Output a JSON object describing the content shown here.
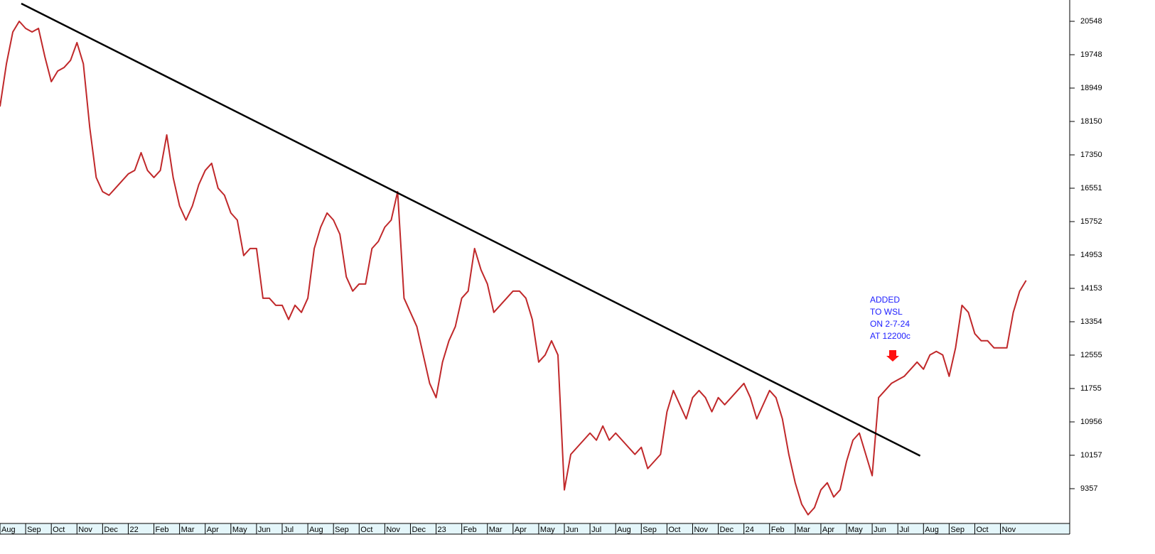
{
  "chart_data": {
    "type": "line",
    "categories": [
      "Aug",
      "Sep",
      "Oct",
      "Nov",
      "Dec",
      "22",
      "Feb",
      "Mar",
      "Apr",
      "May",
      "Jun",
      "Jul",
      "Aug",
      "Sep",
      "Oct",
      "Nov",
      "Dec",
      "23",
      "Feb",
      "Mar",
      "Apr",
      "May",
      "Jun",
      "Jul",
      "Aug",
      "Sep",
      "Oct",
      "Nov",
      "Dec",
      "24",
      "Feb",
      "Mar",
      "Apr",
      "May",
      "Jun",
      "Jul",
      "Aug",
      "Sep",
      "Oct",
      "Nov"
    ],
    "x": [
      0,
      0.25,
      0.5,
      0.75,
      1,
      1.25,
      1.5,
      1.75,
      2,
      2.25,
      2.5,
      2.75,
      3,
      3.25,
      3.5,
      3.75,
      4,
      4.25,
      4.5,
      4.75,
      5,
      5.25,
      5.5,
      5.75,
      6,
      6.25,
      6.5,
      6.75,
      7,
      7.25,
      7.5,
      7.75,
      8,
      8.25,
      8.5,
      8.75,
      9,
      9.25,
      9.5,
      9.75,
      10,
      10.25,
      10.5,
      10.75,
      11,
      11.25,
      11.5,
      11.75,
      12,
      12.25,
      12.5,
      12.75,
      13,
      13.25,
      13.5,
      13.75,
      14,
      14.25,
      14.5,
      14.75,
      15,
      15.25,
      15.5,
      15.75,
      16,
      16.25,
      16.5,
      16.75,
      17,
      17.25,
      17.5,
      17.75,
      18,
      18.25,
      18.5,
      18.75,
      19,
      19.25,
      19.5,
      19.75,
      20,
      20.25,
      20.5,
      20.75,
      21,
      21.25,
      21.5,
      21.75,
      22,
      22.25,
      22.5,
      22.75,
      23,
      23.25,
      23.5,
      23.75,
      24,
      24.25,
      24.5,
      24.75,
      25,
      25.25,
      25.5,
      25.75,
      26,
      26.25,
      26.5,
      26.75,
      27,
      27.25,
      27.5,
      27.75,
      28,
      28.25,
      28.5,
      28.75,
      29,
      29.25,
      29.5,
      29.75,
      30,
      30.25,
      30.5,
      30.75,
      31,
      31.25,
      31.5,
      31.75,
      32,
      32.25,
      32.5,
      32.75,
      33,
      33.25,
      33.5,
      33.75,
      34,
      34.25,
      34.5,
      34.75,
      35,
      35.25,
      35.5,
      35.75,
      36,
      36.25,
      36.5,
      36.75,
      37,
      37.25,
      37.5,
      37.75,
      38,
      38.25,
      38.5,
      38.75,
      39,
      39.25,
      39.5,
      39.75,
      40
    ],
    "series": [
      {
        "color": "#c0282a",
        "values": [
          18508,
          19528,
          20293,
          20548,
          20378,
          20293,
          20378,
          19698,
          19103,
          19358,
          19443,
          19613,
          20038,
          19528,
          17998,
          16808,
          16468,
          16383,
          16553,
          16723,
          16893,
          16978,
          17403,
          16978,
          16808,
          16978,
          17828,
          16808,
          16128,
          15788,
          16128,
          16638,
          16978,
          17148,
          16553,
          16383,
          15958,
          15788,
          14938,
          15108,
          15108,
          13918,
          13918,
          13748,
          13748,
          13408,
          13748,
          13578,
          13918,
          15108,
          15618,
          15958,
          15788,
          15448,
          14428,
          14088,
          14258,
          14258,
          15108,
          15278,
          15618,
          15788,
          16468,
          13918,
          13578,
          13238,
          12558,
          11878,
          11538,
          12388,
          12898,
          13238,
          13918,
          14088,
          15108,
          14598,
          14258,
          13578,
          13748,
          13918,
          14088,
          14088,
          13918,
          13408,
          12388,
          12558,
          12898,
          12558,
          9328,
          10178,
          10348,
          10518,
          10688,
          10518,
          10858,
          10518,
          10688,
          10518,
          10348,
          10178,
          10348,
          9838,
          10008,
          10178,
          11198,
          11708,
          11368,
          11028,
          11538,
          11708,
          11538,
          11198,
          11538,
          11368,
          11538,
          11708,
          11878,
          11538,
          11028,
          11368,
          11708,
          11538,
          11028,
          10178,
          9498,
          8988,
          8733,
          8903,
          9328,
          9498,
          9158,
          9328,
          10008,
          10518,
          10688,
          10178,
          9668,
          11538,
          11708,
          11878,
          11963,
          12048,
          12218,
          12388,
          12218,
          12558,
          12643,
          12558,
          12048,
          12728,
          13748,
          13578,
          13068,
          12898,
          12898,
          12728,
          12728,
          12728,
          13578,
          14088,
          14343
        ]
      }
    ],
    "trendline": {
      "x": [
        0.83,
        35.87
      ],
      "y": [
        20973,
        10144
      ],
      "color": "#000000"
    },
    "annotation": [
      "ADDED",
      "TO WSL",
      "ON 2-7-24",
      "AT 12200c"
    ],
    "xlim": [
      0,
      41.7
    ],
    "ylim": [
      8524,
      21058
    ],
    "yticks": [
      20548,
      19748,
      18949,
      18150,
      17350,
      16551,
      15752,
      14953,
      14153,
      13354,
      12555,
      11755,
      10956,
      10157,
      9357
    ]
  }
}
